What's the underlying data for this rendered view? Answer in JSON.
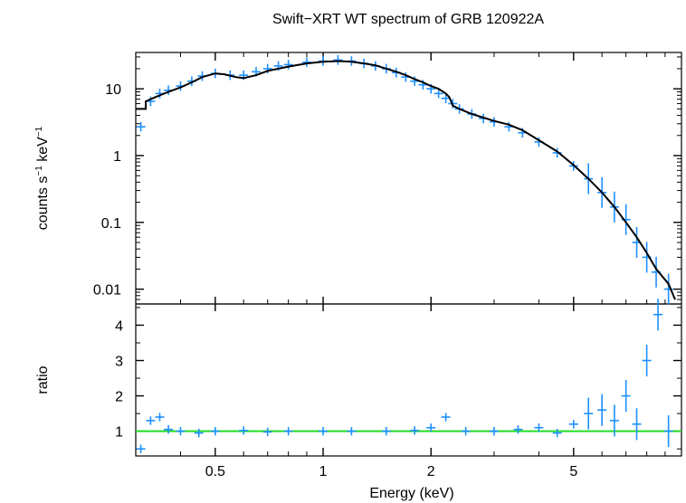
{
  "chart_data": [
    {
      "type": "scatter",
      "panel": "spectrum",
      "title": "Swift−XRT WT spectrum of GRB 120922A",
      "xlabel": "Energy (keV)",
      "ylabel_main": "counts s",
      "ylabel_exp1": "−1",
      "ylabel_mid": " keV",
      "ylabel_exp2": "−1",
      "xscale": "log",
      "yscale": "log",
      "xlim": [
        0.3,
        10
      ],
      "ylim": [
        0.006,
        35
      ],
      "x_ticks": [
        {
          "value": 0.5,
          "label": "0.5"
        },
        {
          "value": 1,
          "label": "1"
        },
        {
          "value": 2,
          "label": "2"
        },
        {
          "value": 5,
          "label": "5"
        }
      ],
      "y_ticks": [
        {
          "value": 10,
          "label": "10"
        },
        {
          "value": 1,
          "label": "1"
        },
        {
          "value": 0.1,
          "label": "0.1"
        },
        {
          "value": 0.01,
          "label": "0.01"
        }
      ],
      "series": [
        {
          "role": "data",
          "color": "#1E90FF",
          "points": [
            [
              0.31,
              2.7
            ],
            [
              0.33,
              6.5
            ],
            [
              0.35,
              8.5
            ],
            [
              0.37,
              9.5
            ],
            [
              0.4,
              11
            ],
            [
              0.43,
              13
            ],
            [
              0.46,
              15.5
            ],
            [
              0.5,
              17
            ],
            [
              0.55,
              16
            ],
            [
              0.6,
              16
            ],
            [
              0.65,
              18
            ],
            [
              0.7,
              20
            ],
            [
              0.75,
              22
            ],
            [
              0.8,
              23
            ],
            [
              0.9,
              25
            ],
            [
              1.0,
              26
            ],
            [
              1.1,
              27
            ],
            [
              1.2,
              26
            ],
            [
              1.3,
              24
            ],
            [
              1.4,
              22
            ],
            [
              1.5,
              20
            ],
            [
              1.6,
              17.5
            ],
            [
              1.7,
              15
            ],
            [
              1.8,
              13
            ],
            [
              1.9,
              11.5
            ],
            [
              2.0,
              10
            ],
            [
              2.1,
              8.5
            ],
            [
              2.2,
              7.2
            ],
            [
              2.3,
              6.0
            ],
            [
              2.4,
              5.0
            ],
            [
              2.6,
              4.2
            ],
            [
              2.8,
              3.6
            ],
            [
              3.0,
              3.2
            ],
            [
              3.3,
              2.7
            ],
            [
              3.6,
              2.2
            ],
            [
              4.0,
              1.6
            ],
            [
              4.5,
              1.1
            ],
            [
              5.0,
              0.7
            ],
            [
              5.5,
              0.45
            ],
            [
              6.0,
              0.28
            ],
            [
              6.5,
              0.17
            ],
            [
              7.0,
              0.11
            ],
            [
              7.5,
              0.05
            ],
            [
              8.0,
              0.03
            ],
            [
              8.5,
              0.018
            ],
            [
              9.2,
              0.01
            ]
          ]
        },
        {
          "role": "model",
          "color": "#000000",
          "points": [
            [
              0.3,
              5
            ],
            [
              0.32,
              5
            ],
            [
              0.32,
              6.5
            ],
            [
              0.34,
              7.5
            ],
            [
              0.37,
              9
            ],
            [
              0.4,
              10.5
            ],
            [
              0.43,
              12.5
            ],
            [
              0.46,
              15
            ],
            [
              0.5,
              17
            ],
            [
              0.53,
              16.5
            ],
            [
              0.57,
              15
            ],
            [
              0.6,
              14.5
            ],
            [
              0.65,
              16
            ],
            [
              0.7,
              18.5
            ],
            [
              0.8,
              21.5
            ],
            [
              0.9,
              24
            ],
            [
              1.0,
              25.5
            ],
            [
              1.1,
              26
            ],
            [
              1.2,
              25.5
            ],
            [
              1.3,
              24
            ],
            [
              1.4,
              22.5
            ],
            [
              1.5,
              20
            ],
            [
              1.6,
              18
            ],
            [
              1.7,
              16
            ],
            [
              1.8,
              14
            ],
            [
              1.9,
              12.5
            ],
            [
              2.0,
              11
            ],
            [
              2.1,
              10
            ],
            [
              2.2,
              8.5
            ],
            [
              2.25,
              7.5
            ],
            [
              2.3,
              5.6
            ],
            [
              2.4,
              5.0
            ],
            [
              2.6,
              4.2
            ],
            [
              2.8,
              3.7
            ],
            [
              3.0,
              3.3
            ],
            [
              3.3,
              2.9
            ],
            [
              3.6,
              2.4
            ],
            [
              4.0,
              1.7
            ],
            [
              4.5,
              1.15
            ],
            [
              5.0,
              0.72
            ],
            [
              5.5,
              0.45
            ],
            [
              6.0,
              0.28
            ],
            [
              6.5,
              0.17
            ],
            [
              7.0,
              0.1
            ],
            [
              7.5,
              0.06
            ],
            [
              8.0,
              0.035
            ],
            [
              8.5,
              0.02
            ],
            [
              9.2,
              0.012
            ],
            [
              9.6,
              0.007
            ]
          ]
        }
      ]
    },
    {
      "type": "scatter",
      "panel": "ratio",
      "ylabel": "ratio",
      "xscale": "log",
      "xlim": [
        0.3,
        10
      ],
      "ylim": [
        0.3,
        4.6
      ],
      "y_ticks": [
        {
          "value": 1,
          "label": "1"
        },
        {
          "value": 2,
          "label": "2"
        },
        {
          "value": 3,
          "label": "3"
        },
        {
          "value": 4,
          "label": "4"
        }
      ],
      "reference_line": {
        "value": 1,
        "color": "#22DD22"
      },
      "series": [
        {
          "role": "data",
          "color": "#1E90FF",
          "points": [
            [
              0.31,
              0.5
            ],
            [
              0.33,
              1.3
            ],
            [
              0.35,
              1.4
            ],
            [
              0.37,
              1.05
            ],
            [
              0.4,
              1.0
            ],
            [
              0.45,
              0.95
            ],
            [
              0.5,
              1.0
            ],
            [
              0.6,
              1.02
            ],
            [
              0.7,
              0.98
            ],
            [
              0.8,
              1.0
            ],
            [
              1.0,
              1.0
            ],
            [
              1.2,
              1.0
            ],
            [
              1.5,
              1.0
            ],
            [
              1.8,
              1.02
            ],
            [
              2.0,
              1.1
            ],
            [
              2.2,
              1.4
            ],
            [
              2.5,
              1.0
            ],
            [
              3.0,
              1.0
            ],
            [
              3.5,
              1.05
            ],
            [
              4.0,
              1.1
            ],
            [
              4.5,
              0.95
            ],
            [
              5.0,
              1.2
            ],
            [
              5.5,
              1.5
            ],
            [
              6.0,
              1.6
            ],
            [
              6.5,
              1.3
            ],
            [
              7.0,
              2.0
            ],
            [
              7.5,
              1.2
            ],
            [
              8.0,
              3.0
            ],
            [
              8.6,
              4.3
            ],
            [
              9.2,
              1.0
            ]
          ]
        }
      ]
    }
  ]
}
